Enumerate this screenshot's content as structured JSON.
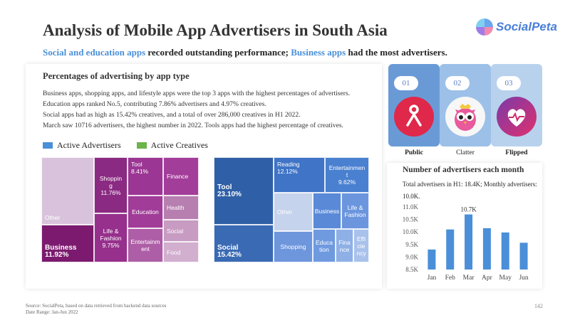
{
  "header": {
    "title": "Analysis of Mobile App Advertisers in South Asia",
    "logo_text": "SocialPeta",
    "subtitle_parts": [
      {
        "text": "Social and education apps",
        "highlight": true
      },
      {
        "text": " recorded outstanding performance; ",
        "highlight": false
      },
      {
        "text": "Business apps",
        "highlight": true
      },
      {
        "text": " had the most advertisers.",
        "highlight": false
      }
    ]
  },
  "left_panel": {
    "heading": "Percentages of advertising by app type",
    "lines": [
      "Business apps, shopping apps, and lifestyle apps were the top 3 apps with the highest percentages of advertisers.",
      "Education apps ranked No.5, contributing 7.86% advertisers and 4.97% creatives.",
      "Social apps had as high as 15.42% creatives, and a total of over 286,000 creatives in H1 2022.",
      "March saw 10716 advertisers, the highest number in 2022. Tools apps had the highest percentage of creatives."
    ],
    "legend": [
      {
        "label": "Active Advertisers",
        "color": "#4a8fd8"
      },
      {
        "label": "Active Creatives",
        "color": "#6bb34a"
      }
    ]
  },
  "treemap_advertisers": [
    {
      "name": "Other",
      "value": "",
      "color": "#d9c3dc",
      "align": "bl",
      "big": false
    },
    {
      "name": "Business",
      "value": "11.92%",
      "color": "#7b1a6e",
      "align": "bl",
      "big": true
    },
    {
      "name": "Shoppin\ng",
      "value": "11.76%",
      "color": "#8b2a82",
      "align": "c",
      "big": false
    },
    {
      "name": "Life &\nFashion",
      "value": "9.75%",
      "color": "#96308c",
      "align": "c",
      "big": false
    },
    {
      "name": "Tool",
      "value": "8.41%",
      "color": "#9c3694",
      "align": "tl",
      "big": false
    },
    {
      "name": "Finance",
      "value": "",
      "color": "#a33d9a",
      "align": "lft",
      "big": false
    },
    {
      "name": "Education",
      "value": "",
      "color": "#a13c98",
      "align": "c",
      "big": false
    },
    {
      "name": "Health",
      "value": "",
      "color": "#b77fb0",
      "align": "lft",
      "big": false
    },
    {
      "name": "Social",
      "value": "",
      "color": "#c79bc2",
      "align": "lft",
      "big": false
    },
    {
      "name": "Entertainm\nent",
      "value": "",
      "color": "#ae5ea6",
      "align": "c",
      "big": false
    },
    {
      "name": "Food",
      "value": "",
      "color": "#d2aecf",
      "align": "lft",
      "big": false
    }
  ],
  "treemap_creatives": [
    {
      "name": "Tool",
      "value": "23.10%",
      "color": "#2f5fa6",
      "align": "lft",
      "big": true
    },
    {
      "name": "Social",
      "value": "15.42%",
      "color": "#3a6ab3",
      "align": "bl",
      "big": true
    },
    {
      "name": "Reading",
      "value": "12.12%",
      "color": "#3f74c6",
      "align": "tl",
      "big": false
    },
    {
      "name": "Entertainmen\nt",
      "value": "9.62%",
      "color": "#4a80d0",
      "align": "c",
      "big": false
    },
    {
      "name": "Other",
      "value": "",
      "color": "#c6d3ec",
      "align": "lft",
      "big": false
    },
    {
      "name": "Shopping",
      "value": "",
      "color": "#6d96dc",
      "align": "c",
      "big": false
    },
    {
      "name": "Business",
      "value": "",
      "color": "#5a89d8",
      "align": "c",
      "big": false
    },
    {
      "name": "Life &\nFashion",
      "value": "",
      "color": "#6b96de",
      "align": "c",
      "big": false
    },
    {
      "name": "Educa\ntion",
      "value": "",
      "color": "#6f9ae0",
      "align": "c",
      "big": false
    },
    {
      "name": "Fina\nnce",
      "value": "",
      "color": "#8eb0e6",
      "align": "c",
      "big": false
    },
    {
      "name": "Effi\ncie\nncy",
      "value": "",
      "color": "#a9c2ec",
      "align": "c",
      "big": false
    }
  ],
  "rankings": [
    {
      "num": "01",
      "label": "Public",
      "bg": "#6a9ad6",
      "icon_bg": "#e0284a",
      "icon": "public-app-icon"
    },
    {
      "num": "02",
      "label": "Clatter",
      "bg": "#9cc0e8",
      "icon_bg": "#f8f8f8",
      "icon": "owl-app-icon"
    },
    {
      "num": "03",
      "label": "Flipped",
      "bg": "#b8d2ee",
      "icon_bg": "#b8307e",
      "icon": "heart-app-icon"
    }
  ],
  "monthly_chart": {
    "heading": "Number of advertisers each month",
    "note": "Total advertisers in H1: 18.4K; Monthly advertisers: 10.0K."
  },
  "chart_data": {
    "type": "bar",
    "title": "Number of advertisers each month",
    "categories": [
      "Jan",
      "Feb",
      "Mar",
      "Apr",
      "May",
      "Jun"
    ],
    "values": [
      9.3,
      10.1,
      10.7,
      10.15,
      9.98,
      9.57
    ],
    "value_unit": "K",
    "ylim": [
      8.5,
      11.0
    ],
    "yticks": [
      "8.5K",
      "9.0K",
      "9.5K",
      "10.0K",
      "10.5K",
      "11.0K"
    ],
    "annotations": [
      {
        "category": "Mar",
        "label": "10.7K"
      }
    ],
    "bar_color": "#4a8fd8",
    "grid": false
  },
  "footer": {
    "source": "Source: SocialPeta, based on data retrieved from backend data sources",
    "date_range": "Date Range: Jan-Jun 2022",
    "page": "142"
  }
}
